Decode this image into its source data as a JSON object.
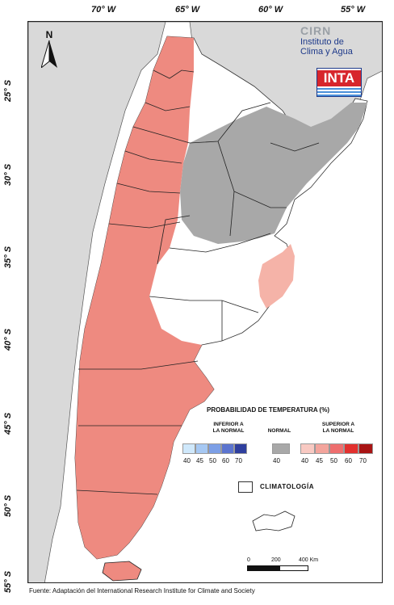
{
  "map": {
    "lon_labels": [
      "70° W",
      "65° W",
      "60° W",
      "55° W"
    ],
    "lat_labels": [
      "25° S",
      "30° S",
      "35° S",
      "40° S",
      "45° S",
      "50° S",
      "55° S"
    ],
    "north_label": "N"
  },
  "logo": {
    "cirn": "CIRN",
    "line1": "Instituto de",
    "line2": "Clima y Agua",
    "inta": "INTA"
  },
  "legend": {
    "title": "PROBABILIDAD DE TEMPERATURA (%)",
    "below_label": "INFERIOR A\nLA NORMAL",
    "normal_label": "NORMAL",
    "above_label": "SUPERIOR A\nLA NORMAL",
    "below_ticks": [
      "40",
      "45",
      "50",
      "60",
      "70"
    ],
    "normal_ticks": [
      "40"
    ],
    "above_ticks": [
      "40",
      "45",
      "50",
      "60",
      "70"
    ],
    "climatology_label": "CLIMATOLOGÍA",
    "colors": {
      "below": [
        "#cfe8fb",
        "#a6c8f3",
        "#7c9fe6",
        "#5b74cf",
        "#2f3f9e"
      ],
      "normal": [
        "#a8a8a8"
      ],
      "above": [
        "#f8c9c2",
        "#f3a49c",
        "#ee6e6e",
        "#e2302e",
        "#a81414"
      ]
    }
  },
  "scale": {
    "labels": [
      "0",
      "200",
      "400 Km"
    ]
  },
  "source": "Fuente: Adaptación del International Research Institute for Climate and Society"
}
